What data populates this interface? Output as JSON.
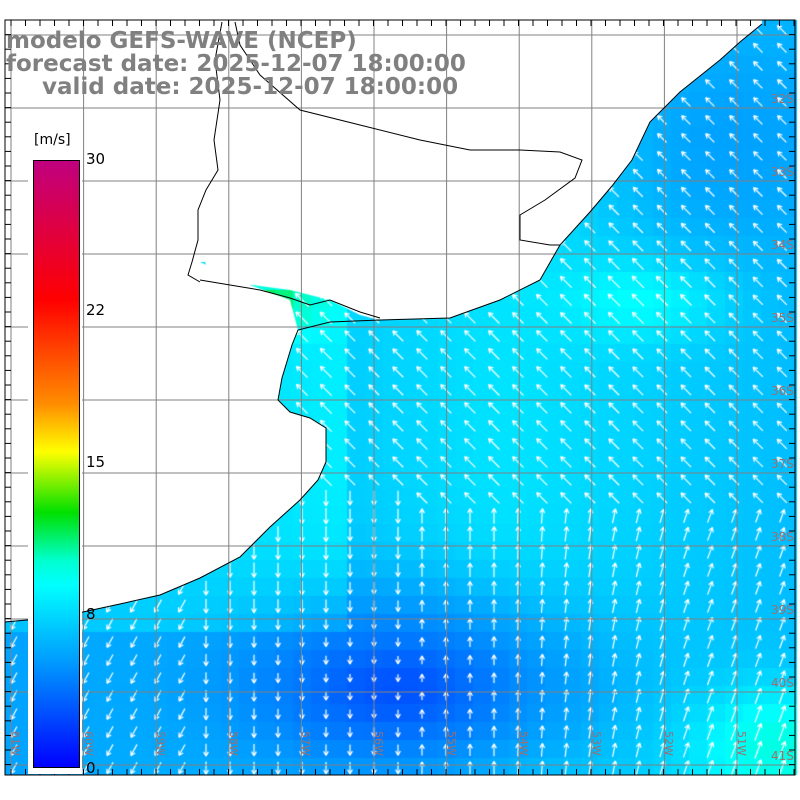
{
  "title": {
    "model": "modelo GEFS-WAVE (NCEP)",
    "forecast": "forecast date: 2025-12-07 18:00:00",
    "valid": "valid date: 2025-12-07 18:00:00"
  },
  "colorbar": {
    "unit": "[m/s]",
    "labels": [
      "30",
      "22",
      "15",
      "8",
      "0"
    ],
    "range": [
      0,
      30
    ]
  },
  "axes": {
    "lon_labels": [
      "61W",
      "60W",
      "59W",
      "58W",
      "57W",
      "56W",
      "55W",
      "54W",
      "53W",
      "52W",
      "51W"
    ],
    "lat_labels": [
      "32S",
      "33S",
      "34S",
      "35S",
      "36S",
      "37S",
      "38S",
      "39S",
      "40S",
      "41S"
    ]
  },
  "colors": {
    "land": "#ffffff",
    "grid": "#808080",
    "coast": "#000000",
    "arrow": "#ffffff"
  }
}
